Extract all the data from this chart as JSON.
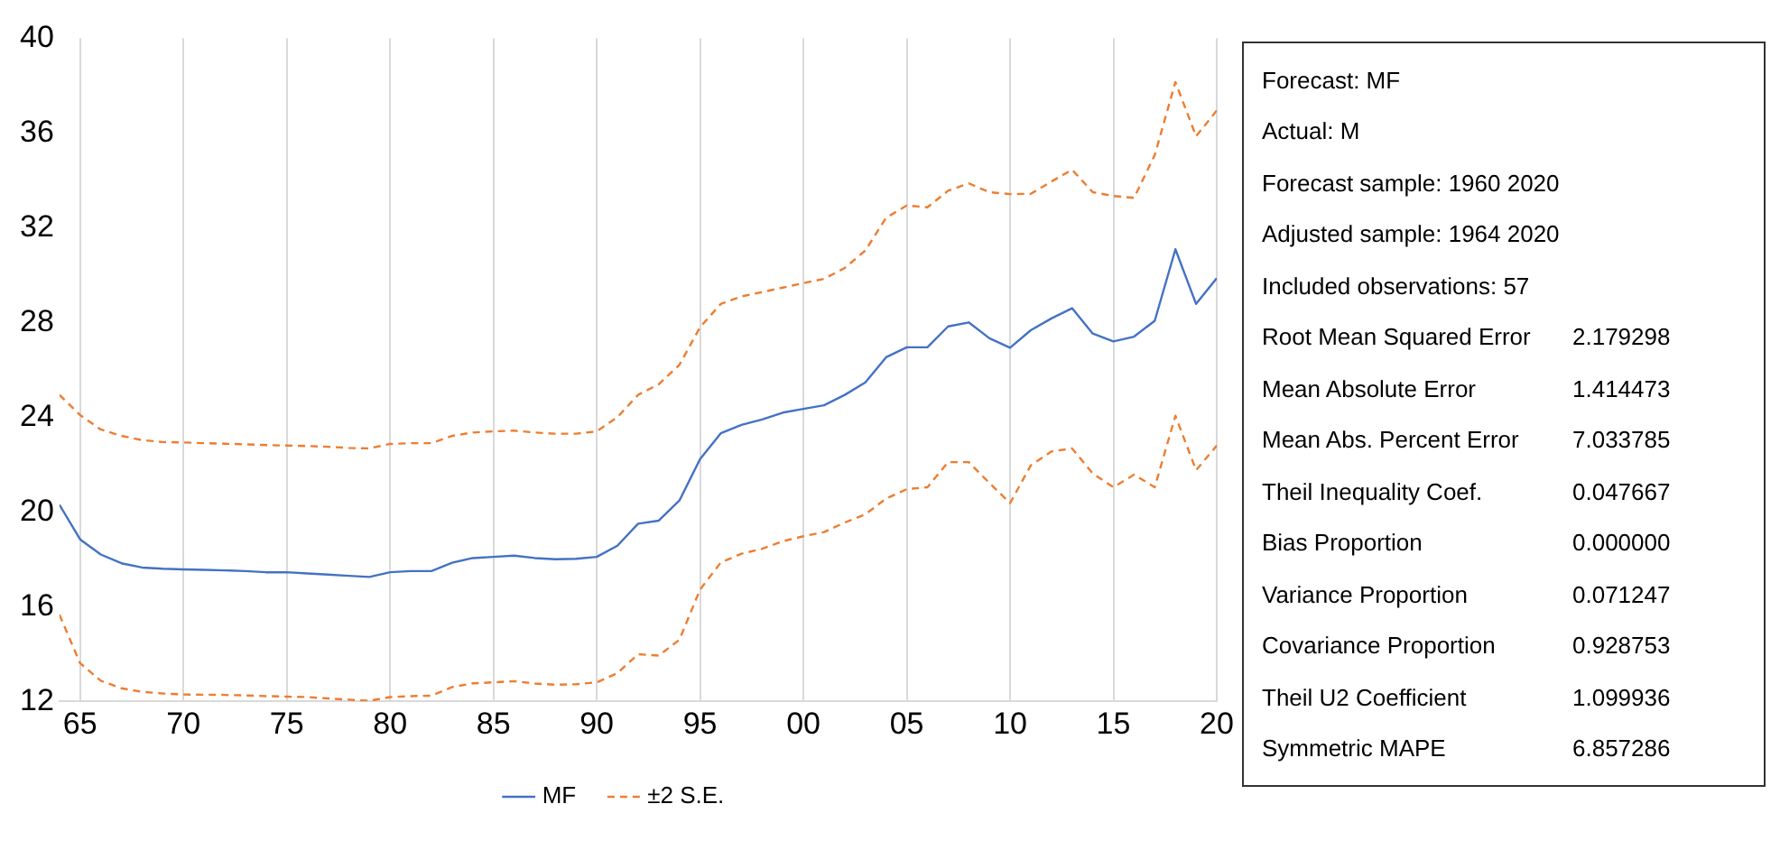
{
  "chart_data": {
    "type": "line",
    "x": [
      1964,
      1965,
      1966,
      1967,
      1968,
      1969,
      1970,
      1971,
      1972,
      1973,
      1974,
      1975,
      1976,
      1977,
      1978,
      1979,
      1980,
      1981,
      1982,
      1983,
      1984,
      1985,
      1986,
      1987,
      1988,
      1989,
      1990,
      1991,
      1992,
      1993,
      1994,
      1995,
      1996,
      1997,
      1998,
      1999,
      2000,
      2001,
      2002,
      2003,
      2004,
      2005,
      2006,
      2007,
      2008,
      2009,
      2010,
      2011,
      2012,
      2013,
      2014,
      2015,
      2016,
      2017,
      2018,
      2019,
      2020
    ],
    "series": [
      {
        "name": "MF",
        "color": "#4472c4",
        "line_style": "solid",
        "values": [
          20.3,
          18.84,
          18.2,
          17.83,
          17.65,
          17.6,
          17.57,
          17.55,
          17.53,
          17.5,
          17.45,
          17.45,
          17.4,
          17.35,
          17.3,
          17.25,
          17.45,
          17.5,
          17.5,
          17.85,
          18.05,
          18.1,
          18.15,
          18.05,
          18.0,
          18.02,
          18.1,
          18.57,
          19.5,
          19.63,
          20.48,
          22.23,
          23.32,
          23.67,
          23.9,
          24.19,
          24.35,
          24.5,
          24.94,
          25.47,
          26.53,
          26.95,
          26.95,
          27.83,
          28.0,
          27.33,
          26.93,
          27.67,
          28.17,
          28.6,
          27.53,
          27.2,
          27.4,
          28.07,
          31.09,
          28.78,
          29.87
        ]
      },
      {
        "name": "±2 S.E.",
        "color": "#ed7d31",
        "line_style": "dashed",
        "values": [
          24.94,
          24.09,
          23.48,
          23.21,
          23.03,
          22.95,
          22.93,
          22.9,
          22.88,
          22.85,
          22.82,
          22.8,
          22.78,
          22.75,
          22.7,
          22.68,
          22.87,
          22.9,
          22.9,
          23.21,
          23.35,
          23.4,
          23.43,
          23.35,
          23.3,
          23.3,
          23.4,
          24.0,
          24.94,
          25.39,
          26.21,
          27.8,
          28.78,
          29.1,
          29.28,
          29.47,
          29.66,
          29.84,
          30.3,
          31.04,
          32.42,
          32.94,
          32.86,
          33.56,
          33.87,
          33.5,
          33.42,
          33.43,
          33.95,
          34.45,
          33.5,
          33.34,
          33.26,
          35.07,
          38.15,
          35.86,
          36.95
        ]
      },
      {
        "color": "#ed7d31",
        "line_style": "dashed",
        "values": [
          15.66,
          13.61,
          12.87,
          12.55,
          12.4,
          12.33,
          12.29,
          12.28,
          12.27,
          12.25,
          12.22,
          12.2,
          12.18,
          12.12,
          12.07,
          12.02,
          12.18,
          12.22,
          12.24,
          12.6,
          12.76,
          12.8,
          12.85,
          12.75,
          12.7,
          12.72,
          12.8,
          13.19,
          13.99,
          13.93,
          14.6,
          16.72,
          17.86,
          18.23,
          18.44,
          18.76,
          18.97,
          19.15,
          19.55,
          19.9,
          20.56,
          20.96,
          21.04,
          22.1,
          22.1,
          21.22,
          20.37,
          21.96,
          22.55,
          22.68,
          21.62,
          21.04,
          21.57,
          21.04,
          24.06,
          21.76,
          22.8
        ]
      }
    ],
    "xlim": [
      1964,
      2020
    ],
    "xticks": [
      {
        "value": 1965,
        "label": "65"
      },
      {
        "value": 1970,
        "label": "70"
      },
      {
        "value": 1975,
        "label": "75"
      },
      {
        "value": 1980,
        "label": "80"
      },
      {
        "value": 1985,
        "label": "85"
      },
      {
        "value": 1990,
        "label": "90"
      },
      {
        "value": 1995,
        "label": "95"
      },
      {
        "value": 2000,
        "label": "00"
      },
      {
        "value": 2005,
        "label": "05"
      },
      {
        "value": 2010,
        "label": "10"
      },
      {
        "value": 2015,
        "label": "15"
      },
      {
        "value": 2020,
        "label": "20"
      }
    ],
    "ylim": [
      12,
      40
    ],
    "yticks": [
      12,
      16,
      20,
      24,
      28,
      32,
      36,
      40
    ],
    "grid": "x",
    "legend": "bottom",
    "marker": "none",
    "annotations": [
      "Forecast: MF",
      "Actual: M",
      "Forecast sample: 1960 2020",
      "Adjusted sample: 1964 2020",
      "Included observations: 57",
      "Root Mean Squared Error\t2.179298",
      "Mean Absolute Error\t1.414473",
      "Mean Abs. Percent Error\t7.033785",
      "Theil Inequality Coef.\t0.047667",
      "Bias Proportion\t0.000000",
      "Variance Proportion\t0.071247",
      "Covariance Proportion\t0.928753",
      "Theil U2 Coefficient\t1.099936",
      "Symmetric MAPE\t6.857286"
    ]
  }
}
